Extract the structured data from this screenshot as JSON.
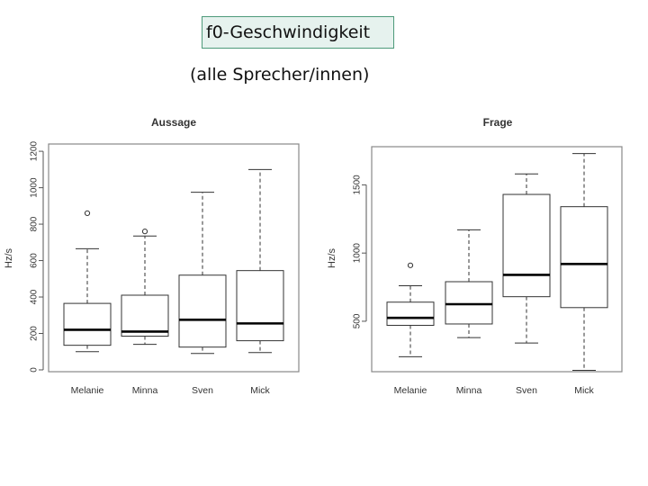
{
  "header": {
    "title": "f0-Geschwindigkeit",
    "subtitle": "(alle Sprecher/innen)"
  },
  "colors": {
    "box_border": "#000000",
    "background": "#ffffff",
    "title_box_fill": "#e6f2ee",
    "title_box_border": "#4d9a7a"
  },
  "chart_data": [
    {
      "type": "boxplot",
      "title": "Aussage",
      "ylabel": "Hz/s",
      "ylim": [
        -10,
        1240
      ],
      "yticks": [
        0,
        200,
        400,
        600,
        800,
        1000,
        1200
      ],
      "categories": [
        "Melanie",
        "Minna",
        "Sven",
        "Mick"
      ],
      "boxes": [
        {
          "name": "Melanie",
          "whisker_low": 100,
          "q1": 135,
          "median": 220,
          "q3": 365,
          "whisker_high": 665,
          "outliers": [
            860
          ]
        },
        {
          "name": "Minna",
          "whisker_low": 140,
          "q1": 185,
          "median": 210,
          "q3": 410,
          "whisker_high": 735,
          "outliers": [
            760
          ]
        },
        {
          "name": "Sven",
          "whisker_low": 90,
          "q1": 125,
          "median": 275,
          "q3": 520,
          "whisker_high": 975,
          "outliers": []
        },
        {
          "name": "Mick",
          "whisker_low": 95,
          "q1": 160,
          "median": 255,
          "q3": 545,
          "whisker_high": 1100,
          "outliers": []
        }
      ]
    },
    {
      "type": "boxplot",
      "title": "Frage",
      "ylabel": "Hz/s",
      "ylim": [
        130,
        1780
      ],
      "yticks": [
        500,
        1000,
        1500
      ],
      "categories": [
        "Melanie",
        "Minna",
        "Sven",
        "Mick"
      ],
      "boxes": [
        {
          "name": "Melanie",
          "whisker_low": 240,
          "q1": 470,
          "median": 525,
          "q3": 640,
          "whisker_high": 760,
          "outliers": [
            910
          ]
        },
        {
          "name": "Minna",
          "whisker_low": 380,
          "q1": 480,
          "median": 625,
          "q3": 790,
          "whisker_high": 1170,
          "outliers": []
        },
        {
          "name": "Sven",
          "whisker_low": 340,
          "q1": 680,
          "median": 840,
          "q3": 1430,
          "whisker_high": 1580,
          "outliers": []
        },
        {
          "name": "Mick",
          "whisker_low": 140,
          "q1": 600,
          "median": 920,
          "q3": 1340,
          "whisker_high": 1730,
          "outliers": []
        }
      ]
    }
  ]
}
